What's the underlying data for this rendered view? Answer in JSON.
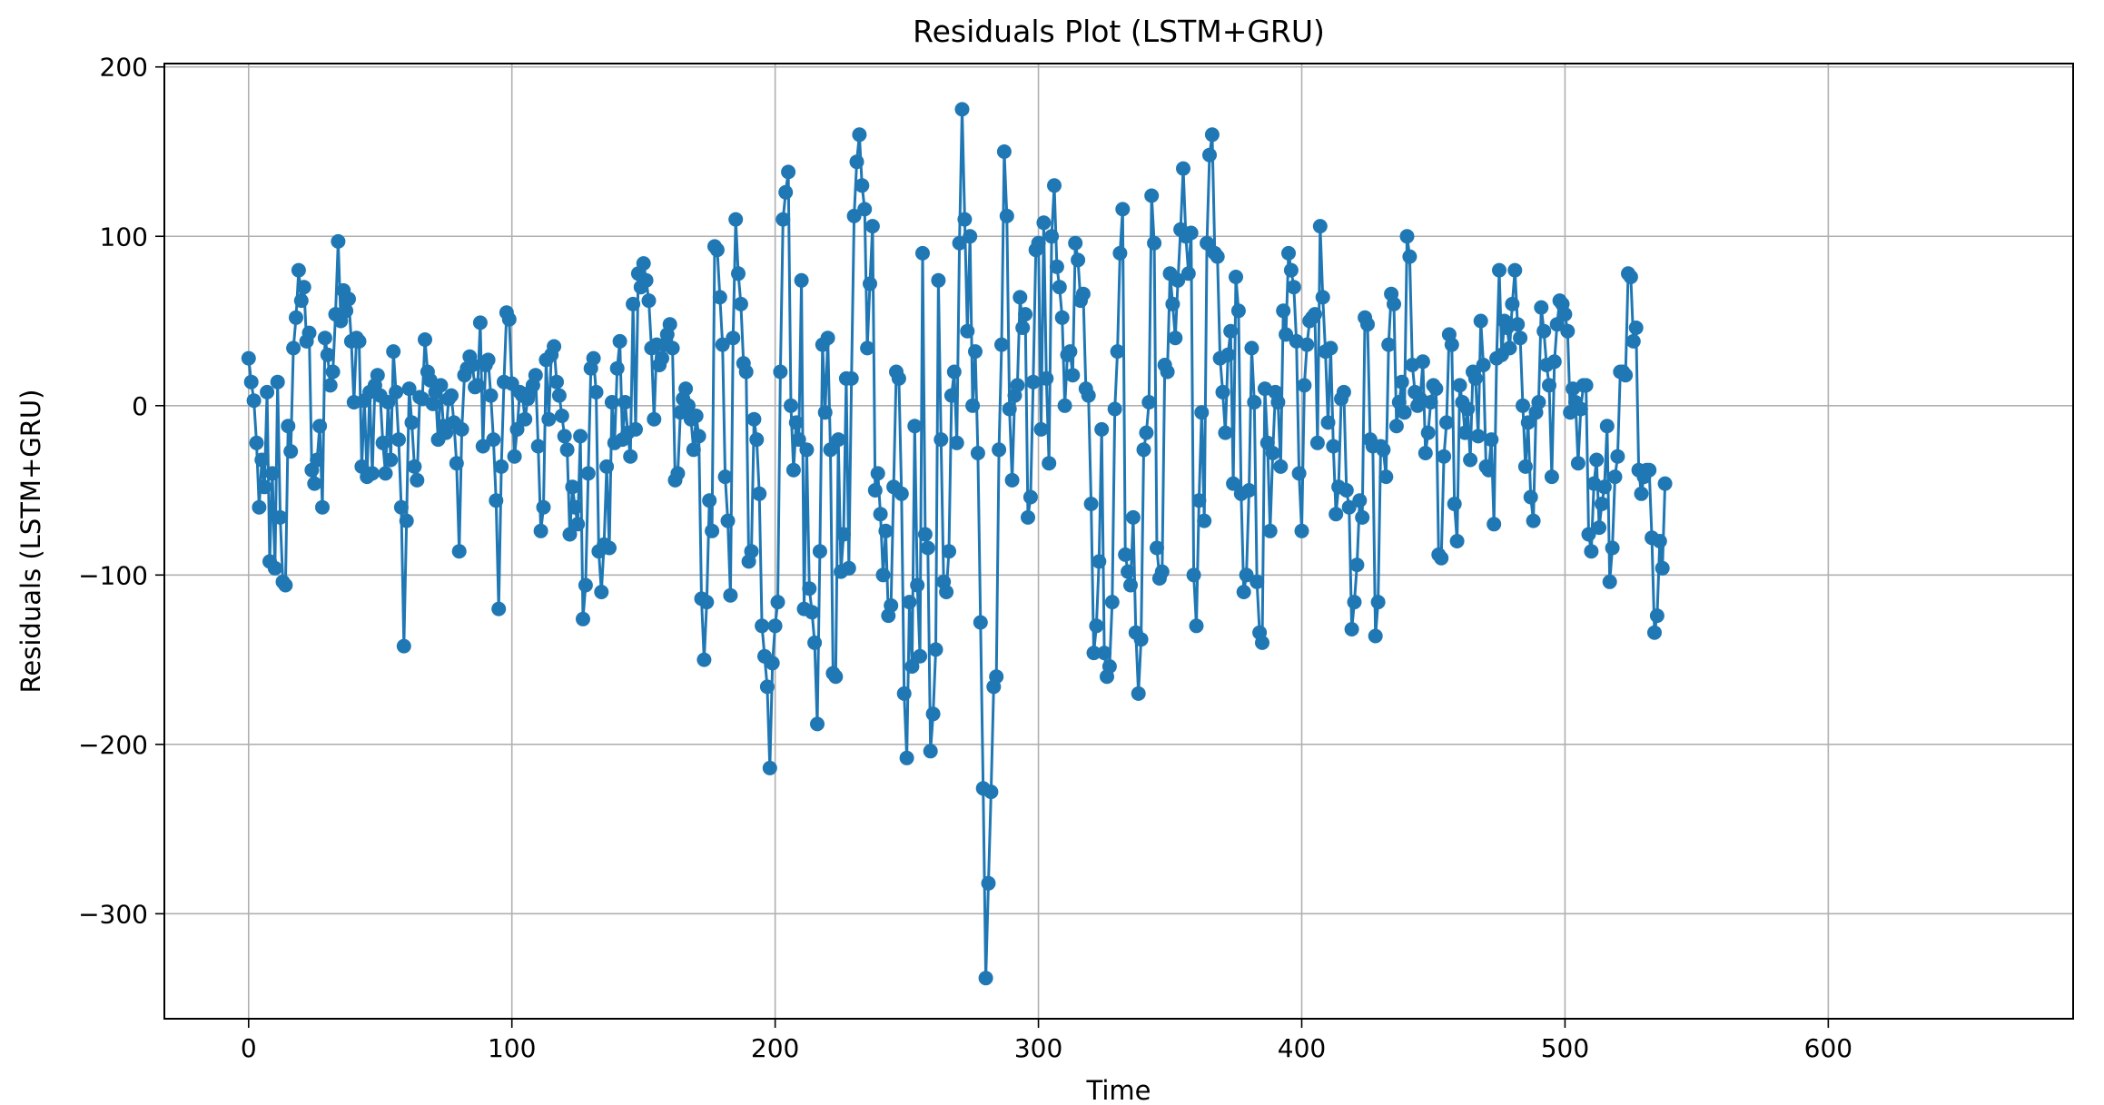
{
  "chart_data": {
    "type": "line",
    "title": "Residuals Plot (LSTM+GRU)",
    "xlabel": "Time",
    "ylabel": "Residuals (LSTM+GRU)",
    "xlim": [
      -32,
      693
    ],
    "ylim": [
      -362,
      202
    ],
    "xticks": [
      0,
      100,
      200,
      300,
      400,
      500,
      600
    ],
    "xtick_labels": [
      "0",
      "100",
      "200",
      "300",
      "400",
      "500",
      "600"
    ],
    "yticks": [
      -300,
      -200,
      -100,
      0,
      100,
      200
    ],
    "ytick_labels": [
      "−300",
      "−200",
      "−100",
      "0",
      "100",
      "200"
    ],
    "grid": true,
    "legend": "none",
    "marker": "circle",
    "series": [
      {
        "color": "#1f77b4",
        "x_start": 0,
        "x_step": 1,
        "values": [
          28,
          14,
          3,
          -22,
          -60,
          -32,
          -48,
          8,
          -92,
          -40,
          -96,
          14,
          -66,
          -104,
          -106,
          -12,
          -27,
          34,
          52,
          80,
          62,
          70,
          38,
          43,
          -38,
          -46,
          -32,
          -12,
          -60,
          40,
          30,
          12,
          20,
          54,
          97,
          50,
          68,
          56,
          63,
          38,
          2,
          40,
          38,
          -36,
          3,
          -42,
          8,
          -40,
          12,
          18,
          6,
          -22,
          -40,
          2,
          -32,
          32,
          8,
          -20,
          -60,
          -142,
          -68,
          10,
          -10,
          -36,
          -44,
          5,
          4,
          39,
          20,
          15,
          1,
          8,
          -20,
          12,
          -12,
          -16,
          4,
          6,
          -10,
          -34,
          -86,
          -14,
          18,
          22,
          29,
          24,
          11,
          12,
          49,
          -24,
          24,
          27,
          6,
          -20,
          -56,
          -120,
          -36,
          14,
          55,
          51,
          13,
          -30,
          -14,
          8,
          6,
          -8,
          4,
          8,
          12,
          18,
          -24,
          -74,
          -60,
          27,
          -8,
          30,
          35,
          14,
          6,
          -6,
          -18,
          -26,
          -76,
          -48,
          -60,
          -70,
          -18,
          -126,
          -106,
          -40,
          22,
          28,
          8,
          -86,
          -110,
          -82,
          -36,
          -84,
          2,
          -22,
          22,
          38,
          -20,
          2,
          -16,
          -30,
          60,
          -14,
          78,
          70,
          84,
          74,
          62,
          34,
          -8,
          36,
          24,
          28,
          36,
          42,
          48,
          34,
          -44,
          -40,
          -4,
          4,
          10,
          0,
          -8,
          -26,
          -6,
          -18,
          -114,
          -150,
          -116,
          -56,
          -74,
          94,
          92,
          64,
          36,
          -42,
          -68,
          -112,
          40,
          110,
          78,
          60,
          25,
          20,
          -92,
          -86,
          -8,
          -20,
          -52,
          -130,
          -148,
          -166,
          -214,
          -152,
          -130,
          -116,
          20,
          110,
          126,
          138,
          0,
          -38,
          -10,
          -20,
          74,
          -120,
          -26,
          -108,
          -122,
          -140,
          -188,
          -86,
          36,
          -4,
          40,
          -26,
          -158,
          -160,
          -20,
          -98,
          -76,
          16,
          -96,
          16,
          112,
          144,
          160,
          130,
          116,
          34,
          72,
          106,
          -50,
          -40,
          -64,
          -100,
          -74,
          -124,
          -118,
          -48,
          20,
          16,
          -52,
          -170,
          -208,
          -116,
          -154,
          -12,
          -106,
          -148,
          90,
          -76,
          -84,
          -204,
          -182,
          -144,
          74,
          -20,
          -104,
          -110,
          -86,
          6,
          20,
          -22,
          96,
          175,
          110,
          44,
          100,
          0,
          32,
          -28,
          -128,
          -226,
          -338,
          -282,
          -228,
          -166,
          -160,
          -26,
          36,
          150,
          112,
          -2,
          -44,
          6,
          12,
          64,
          46,
          54,
          -66,
          -54,
          14,
          92,
          96,
          -14,
          108,
          16,
          -34,
          100,
          130,
          82,
          70,
          52,
          0,
          30,
          32,
          18,
          96,
          86,
          62,
          66,
          10,
          6,
          -58,
          -146,
          -130,
          -92,
          -14,
          -146,
          -160,
          -154,
          -116,
          -2,
          32,
          90,
          116,
          -88,
          -98,
          -106,
          -66,
          -134,
          -170,
          -138,
          -26,
          -16,
          2,
          124,
          96,
          -84,
          -102,
          -98,
          24,
          20,
          78,
          60,
          40,
          74,
          104,
          140,
          100,
          78,
          102,
          -100,
          -130,
          -56,
          -4,
          -68,
          96,
          148,
          160,
          90,
          88,
          28,
          8,
          -16,
          30,
          44,
          -46,
          76,
          56,
          -52,
          -110,
          -100,
          -50,
          34,
          2,
          -104,
          -134,
          -140,
          10,
          -22,
          -74,
          -28,
          8,
          2,
          -36,
          56,
          42,
          90,
          80,
          70,
          38,
          -40,
          -74,
          12,
          36,
          50,
          52,
          54,
          -22,
          106,
          64,
          32,
          -10,
          34,
          -24,
          -64,
          -48,
          4,
          8,
          -50,
          -60,
          -132,
          -116,
          -94,
          -56,
          -66,
          52,
          48,
          -20,
          -24,
          -136,
          -116,
          -24,
          -26,
          -42,
          36,
          66,
          60,
          -12,
          2,
          14,
          -4,
          100,
          88,
          24,
          8,
          0,
          4,
          26,
          -28,
          -16,
          2,
          12,
          10,
          -88,
          -90,
          -30,
          -10,
          42,
          36,
          -58,
          -80,
          12,
          2,
          -16,
          -2,
          -32,
          20,
          16,
          -18,
          50,
          24,
          -36,
          -38,
          -20,
          -70,
          28,
          80,
          30,
          50,
          46,
          34,
          60,
          80,
          48,
          40,
          0,
          -36,
          -10,
          -54,
          -68,
          -4,
          2,
          58,
          44,
          24,
          12,
          -42,
          26,
          48,
          62,
          60,
          54,
          44,
          -4,
          10,
          2,
          -34,
          -2,
          12,
          12,
          -76,
          -86,
          -46,
          -32,
          -72,
          -58,
          -48,
          -12,
          -104,
          -84,
          -42,
          -30,
          20,
          20,
          18,
          78,
          76,
          38,
          46,
          -38,
          -52,
          -42,
          -38,
          -38,
          -78,
          -134,
          -124,
          -80,
          -96,
          -46
        ]
      }
    ]
  }
}
